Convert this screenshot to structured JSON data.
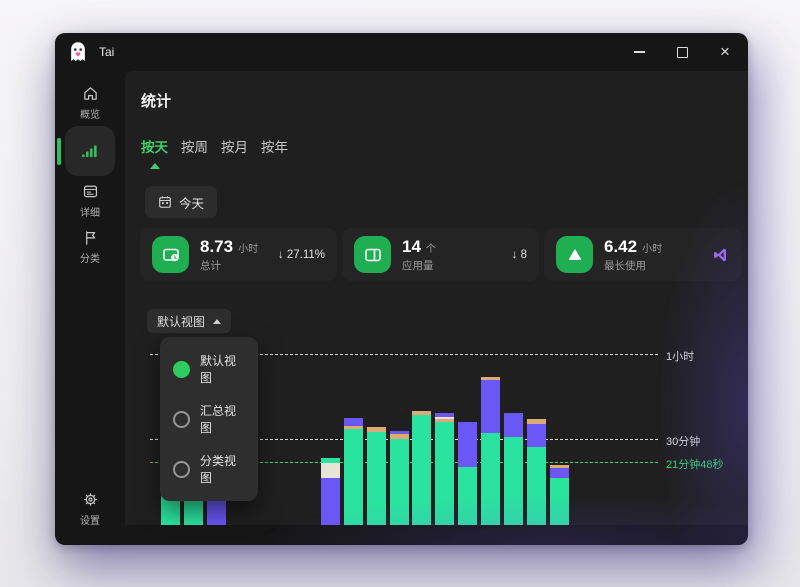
{
  "app": {
    "title": "Tai"
  },
  "header": {
    "title": "统计"
  },
  "sidebar": {
    "items": [
      {
        "id": "overview",
        "label": "概览",
        "active": false
      },
      {
        "id": "statistics",
        "label": "",
        "active": true
      },
      {
        "id": "detail",
        "label": "详细",
        "active": false
      },
      {
        "id": "category",
        "label": "分类",
        "active": false
      },
      {
        "id": "settings",
        "label": "设置",
        "active": false
      }
    ]
  },
  "tabs": [
    {
      "label": "按天",
      "active": true
    },
    {
      "label": "按周",
      "active": false
    },
    {
      "label": "按月",
      "active": false
    },
    {
      "label": "按年",
      "active": false
    }
  ],
  "date_filter": {
    "label": "今天"
  },
  "stat_cards": [
    {
      "value": "8.73",
      "unit": "小时",
      "label": "总计",
      "delta": "↓ 27.11%",
      "icon": "screen-time-icon"
    },
    {
      "value": "14",
      "unit": "个",
      "label": "应用量",
      "delta": "↓ 8",
      "icon": "app-window-icon"
    },
    {
      "value": "6.42",
      "unit": "小时",
      "label": "最长使用",
      "delta": "",
      "icon": "triangle-up-icon",
      "badge_icon": "visual-studio-icon"
    }
  ],
  "view_dropdown": {
    "button_label": "默认视图",
    "options": [
      {
        "label": "默认视图",
        "selected": true
      },
      {
        "label": "汇总视图",
        "selected": false
      },
      {
        "label": "分类视图",
        "selected": false
      }
    ]
  },
  "icons": {
    "titlebar": [
      "ghost-logo-icon",
      "minimize-icon",
      "maximize-icon",
      "close-icon"
    ],
    "sidebar": [
      "home-icon",
      "bar-chart-icon",
      "detail-list-icon",
      "flag-icon",
      "gear-icon"
    ],
    "other": [
      "calendar-icon",
      "caret-up-icon",
      "active-tab-triangle-icon",
      "visual-studio-icon"
    ]
  },
  "colors": {
    "accent_green": "#3ecf6b",
    "card_icon_green": "#1fae52",
    "radio_green": "#2ecc5e",
    "vs_purple": "#9a6df0",
    "window_bg": "#161616",
    "main_bg": "#1f1f1f"
  },
  "chart_data": {
    "type": "bar",
    "stacked": true,
    "unit": "minutes",
    "slot_count": 18,
    "note": "hourly usage slots; slots 3-6 have no bars; x tick labels not visible in view",
    "legend_position": "none",
    "gridlines": [
      {
        "label": "1小时",
        "minutes": 60,
        "style": "dashed",
        "color": "#d9d9d9",
        "role": "tick"
      },
      {
        "label": "30分钟",
        "minutes": 30,
        "style": "dashed",
        "color": "#d9d9d9",
        "role": "tick"
      },
      {
        "label": "21分钟48秒",
        "minutes": 21.8,
        "style": "dashed",
        "color": "#34d673",
        "role": "average"
      }
    ],
    "colors": {
      "green": "#2be3a0",
      "purple": "#6a57f5",
      "cream": "#e8e3d6",
      "tan": "#dcaa74"
    },
    "bars": [
      {
        "slot": 0,
        "segments": [
          [
            "green",
            30.5
          ]
        ]
      },
      {
        "slot": 1,
        "segments": [
          [
            "green",
            30.5
          ]
        ]
      },
      {
        "slot": 2,
        "segments": [
          [
            "purple",
            16.5
          ],
          [
            "green",
            3
          ]
        ]
      },
      {
        "slot": 7,
        "segments": [
          [
            "purple",
            16.5
          ],
          [
            "cream",
            5.3
          ],
          [
            "green",
            2
          ]
        ]
      },
      {
        "slot": 8,
        "segments": [
          [
            "green",
            34
          ],
          [
            "tan",
            0.8
          ],
          [
            "purple",
            3
          ]
        ]
      },
      {
        "slot": 9,
        "segments": [
          [
            "green",
            33
          ],
          [
            "tan",
            1.5
          ]
        ]
      },
      {
        "slot": 10,
        "segments": [
          [
            "green",
            30.5
          ],
          [
            "tan",
            1.5
          ],
          [
            "purple",
            1.2
          ]
        ]
      },
      {
        "slot": 11,
        "segments": [
          [
            "green",
            39
          ],
          [
            "tan",
            1.2
          ]
        ]
      },
      {
        "slot": 12,
        "segments": [
          [
            "green",
            36.5
          ],
          [
            "tan",
            0.8
          ],
          [
            "cream",
            1
          ],
          [
            "purple",
            1.2
          ]
        ]
      },
      {
        "slot": 13,
        "segments": [
          [
            "green",
            20.5
          ],
          [
            "purple",
            16
          ]
        ]
      },
      {
        "slot": 14,
        "segments": [
          [
            "green",
            32.5
          ],
          [
            "purple",
            18.7
          ],
          [
            "tan",
            1.2
          ]
        ]
      },
      {
        "slot": 15,
        "segments": [
          [
            "green",
            31
          ],
          [
            "purple",
            8.5
          ]
        ]
      },
      {
        "slot": 16,
        "segments": [
          [
            "green",
            27.5
          ],
          [
            "purple",
            8
          ],
          [
            "tan",
            1.8
          ]
        ]
      },
      {
        "slot": 17,
        "segments": [
          [
            "green",
            16.5
          ],
          [
            "purple",
            3.5
          ],
          [
            "tan",
            1.2
          ]
        ]
      }
    ]
  }
}
